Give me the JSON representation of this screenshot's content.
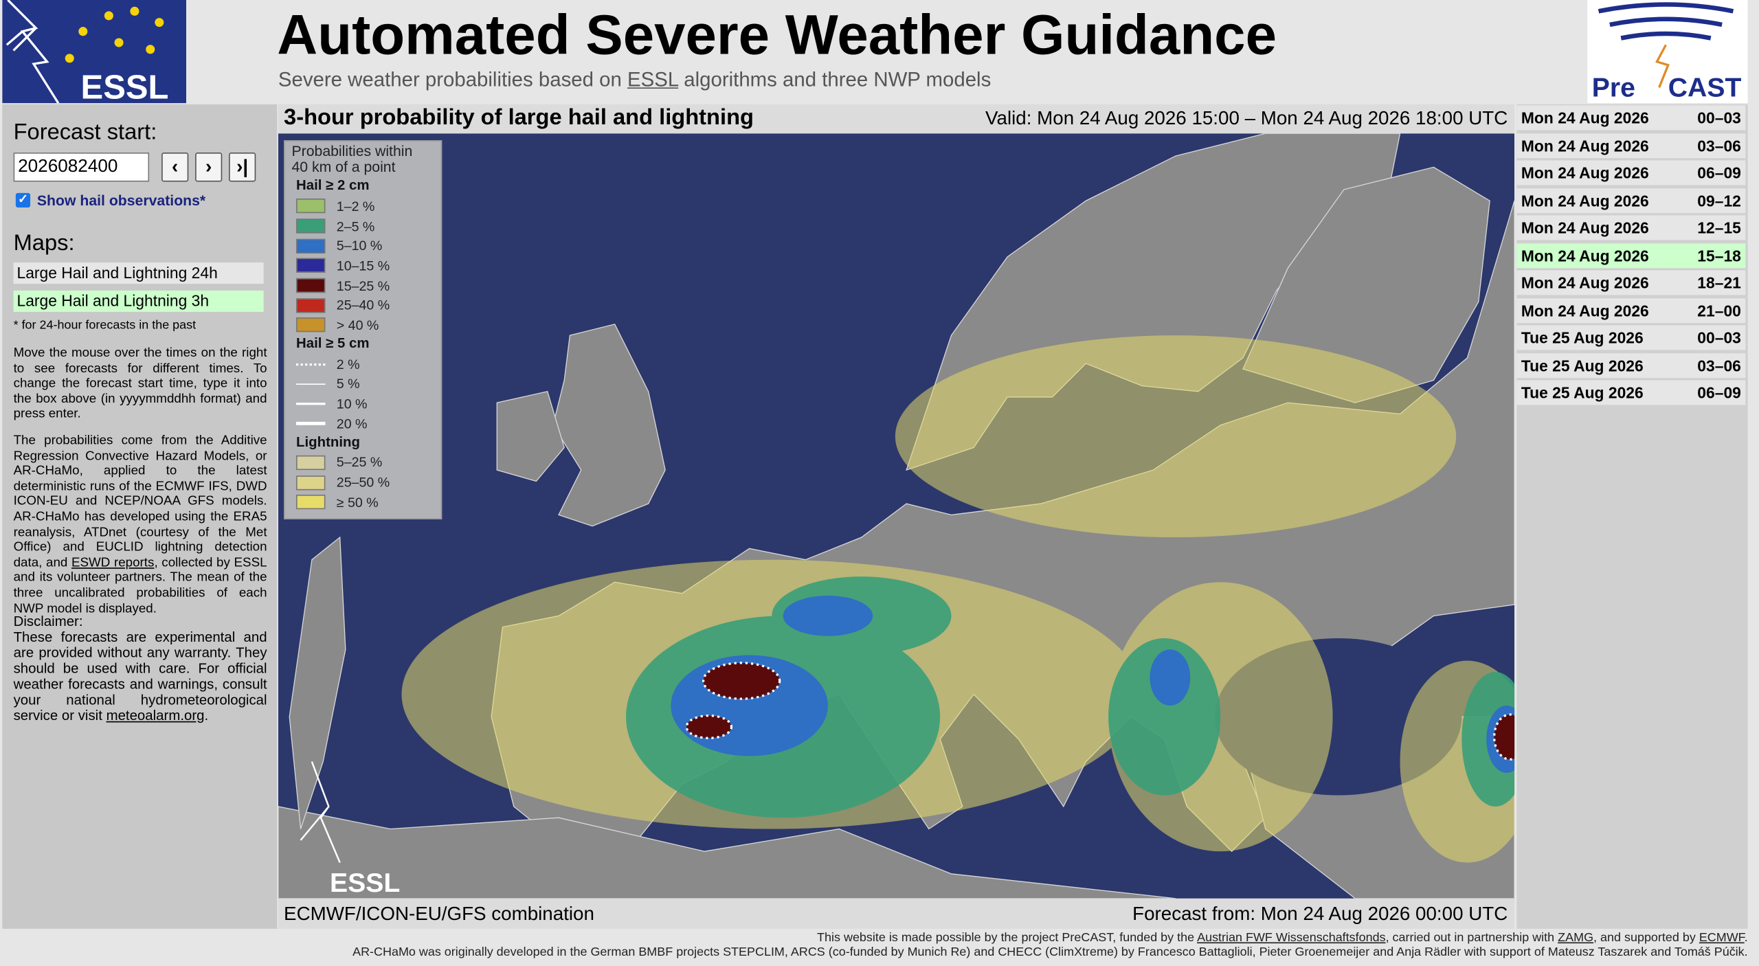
{
  "header": {
    "title": "Automated Severe Weather Guidance",
    "subtitle": {
      "before": "Severe weather probabilities based on",
      "link": "ESSL",
      "after": "algorithms and three NWP models"
    },
    "logo_left": "ESSL",
    "logo_right": [
      "Pre",
      "CAST"
    ]
  },
  "sidebar": {
    "forecast_start_label": "Forecast start:",
    "input_value": "2026082400",
    "buttons": [
      "‹",
      "›",
      "›|"
    ],
    "checkbox_label": "Show hail observations*",
    "maps_heading": "Maps:",
    "maps": [
      "Large Hail and Lightning 24h",
      "Large Hail and Lightning 3h"
    ],
    "selected_map": 1,
    "note": "* for 24-hour forecasts in the past",
    "paragraph1": "Move the mouse over the times on the right to see forecasts for different times. To change the forecast start time, type it into the box above (in yyyymmddhh format) and press enter.",
    "paragraph2": {
      "before": "The probabilities come from the Additive Regression Convective Hazard Models, or AR-CHaMo, applied to the latest deterministic runs of the ECMWF IFS, DWD ICON-EU and NCEP/NOAA GFS models. AR-CHaMo has developed using the ERA5 reanalysis, ATDnet (courtesy of the Met Office) and EUCLID lightning detection data, and",
      "link": "ESWD reports",
      "after": ", collected by ESSL and its volunteer partners. The mean of the three uncalibrated probabilities of each NWP model is displayed."
    },
    "disclaimer_heading": "Disclaimer:",
    "disclaimer": {
      "before": "These forecasts are experimental and are provided without any warranty. They should be used with care. For official weather forecasts and warnings, consult your national hydrometeorological service or visit",
      "link": "meteoalarm.org",
      "after": "."
    }
  },
  "map": {
    "title": "3-hour probability of large hail and lightning",
    "valid": "Valid: Mon 24 Aug 2026 15:00 – Mon 24 Aug 2026 18:00 UTC",
    "models": "ECMWF/ICON-EU/GFS combination",
    "forecast_from": "Forecast from: Mon 24 Aug 2026 00:00 UTC",
    "watermark": "ESSL",
    "legend": {
      "title": [
        "Probabilities within",
        "40 km of a point"
      ],
      "sections": [
        {
          "heading": "Hail ≥ 2 cm",
          "items": [
            {
              "label": "1–2 %",
              "color": "#9bbf6a"
            },
            {
              "label": "2–5 %",
              "color": "#3a9e78"
            },
            {
              "label": "5–10 %",
              "color": "#2f6fc4"
            },
            {
              "label": "10–15 %",
              "color": "#2a2a9a"
            },
            {
              "label": "15–25 %",
              "color": "#5a0a0a"
            },
            {
              "label": "25–40 %",
              "color": "#c0281e"
            },
            {
              "label": "> 40 %",
              "color": "#c8922a"
            }
          ]
        },
        {
          "heading": "Hail ≥ 5 cm",
          "lines": [
            {
              "label": "2 %",
              "style": "dotted"
            },
            {
              "label": "5 %",
              "style": "thin"
            },
            {
              "label": "10 %",
              "style": "medium"
            },
            {
              "label": "20 %",
              "style": "thick"
            }
          ]
        },
        {
          "heading": "Lightning",
          "items": [
            {
              "label": "5–25 %",
              "color": "#d6cfa0"
            },
            {
              "label": "25–50 %",
              "color": "#ddd48a"
            },
            {
              "label": "≥ 50 %",
              "color": "#e6dc6a"
            }
          ]
        }
      ]
    }
  },
  "times": [
    [
      "Mon 24 Aug 2026",
      "00–03"
    ],
    [
      "Mon 24 Aug 2026",
      "03–06"
    ],
    [
      "Mon 24 Aug 2026",
      "06–09"
    ],
    [
      "Mon 24 Aug 2026",
      "09–12"
    ],
    [
      "Mon 24 Aug 2026",
      "12–15"
    ],
    [
      "Mon 24 Aug 2026",
      "15–18"
    ],
    [
      "Mon 24 Aug 2026",
      "18–21"
    ],
    [
      "Mon 24 Aug 2026",
      "21–00"
    ],
    [
      "Tue 25 Aug 2026",
      "00–03"
    ],
    [
      "Tue 25 Aug 2026",
      "03–06"
    ],
    [
      "Tue 25 Aug 2026",
      "06–09"
    ]
  ],
  "selected_time": 5,
  "footer": {
    "line1": {
      "before": "This website is made possible by the project PreCAST, funded by the",
      "link1": "Austrian FWF Wissenschaftsfonds",
      "mid1": ", carried out in partnership with",
      "link2": "ZAMG",
      "mid2": ", and supported by",
      "link3": "ECMWF",
      "after": "."
    },
    "line2": "AR-CHaMo was originally developed in the German BMBF projects STEPCLIM, ARCS (co-funded by Munich Re) and CHECC (ClimXtreme) by Francesco Battaglioli, Pieter Groenemeijer and Anja Rädler with support of Mateusz Taszarek and Tomáš Púčik."
  }
}
